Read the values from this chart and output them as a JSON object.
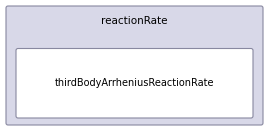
{
  "outer_label": "reactionRate",
  "inner_label": "thirdBodyArrheniusReactionRate",
  "outer_bg": "#D8D8E8",
  "outer_border": "#8888A0",
  "inner_bg": "#FFFFFF",
  "inner_border": "#8888A0",
  "outer_label_fontsize": 7.5,
  "inner_label_fontsize": 7.0,
  "fig_bg": "#FFFFFF",
  "fig_width": 2.69,
  "fig_height": 1.31,
  "dpi": 100
}
